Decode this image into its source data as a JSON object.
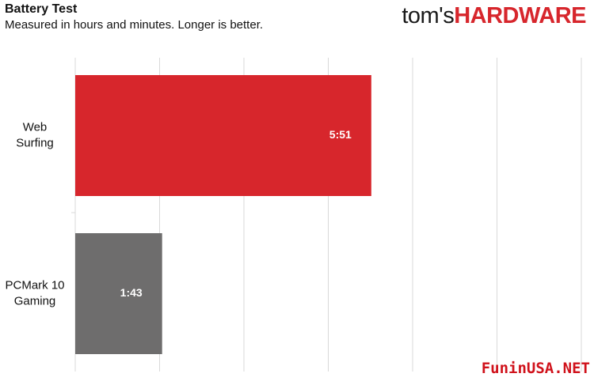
{
  "header": {
    "title": "Battery Test",
    "subtitle": "Measured in hours and minutes. Longer is better.",
    "logo_part_1": "tom's",
    "logo_part_2": "HARDWARE"
  },
  "watermark": "FuninUSA.NET",
  "colors": {
    "web_surfing_bar": "#d7262c",
    "gaming_bar": "#6e6d6d",
    "gridline": "#d9d9d9",
    "logo_accent": "#d7262c"
  },
  "chart_data": {
    "type": "bar",
    "orientation": "horizontal",
    "title": "Battery Test",
    "subtitle": "Measured in hours and minutes. Longer is better.",
    "categories": [
      "Web Surfing",
      "PCMark 10 Gaming"
    ],
    "category_lines": [
      [
        "Web",
        "Surfing"
      ],
      [
        "PCMark 10",
        "Gaming"
      ]
    ],
    "values": [
      351,
      103
    ],
    "value_labels": [
      "5:51",
      "1:43"
    ],
    "value_unit": "minutes",
    "xlim": [
      0,
      600
    ],
    "grid": true,
    "legend": "none"
  }
}
